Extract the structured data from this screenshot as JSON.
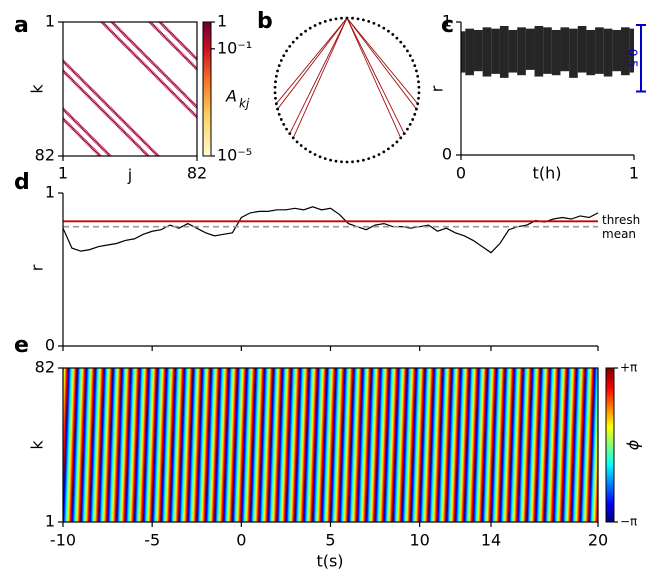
{
  "chart_data": [
    {
      "type": "matrix",
      "label": "a",
      "xlabel": "j",
      "ylabel": "k",
      "xlim": [
        1,
        82
      ],
      "ylim": [
        1,
        82
      ],
      "xticks": [
        1,
        82
      ],
      "yticks": [
        1,
        82
      ],
      "band_offsets": [
        23,
        24,
        29,
        30,
        52,
        53,
        58,
        59
      ],
      "color": "#a0003c",
      "clim": [
        1e-05,
        1
      ],
      "log": true,
      "colorbar_ticks": [
        1,
        {
          "value": 0.1,
          "label": "10⁻¹"
        },
        {
          "value": 1e-05,
          "label": "10⁻⁵"
        }
      ],
      "colorbar_label": "A",
      "colorbar_label_sub": "kj"
    },
    {
      "type": "network",
      "label": "b",
      "node_count": 82,
      "source": 0,
      "targets": [
        23,
        24,
        29,
        30,
        52,
        53,
        58,
        59
      ],
      "color": "#a01010"
    },
    {
      "type": "band",
      "label": "c",
      "xlabel": "t(h)",
      "ylabel": "r",
      "xlim": [
        0,
        1
      ],
      "ylim": [
        0,
        1
      ],
      "xticks": [
        0,
        1
      ],
      "yticks": [
        0,
        1
      ],
      "x": [
        0,
        0.05,
        0.1,
        0.15,
        0.2,
        0.25,
        0.3,
        0.35,
        0.4,
        0.45,
        0.5,
        0.55,
        0.6,
        0.65,
        0.7,
        0.75,
        0.8,
        0.85,
        0.9,
        0.95,
        1
      ],
      "upper": [
        0.93,
        0.95,
        0.94,
        0.96,
        0.95,
        0.97,
        0.94,
        0.96,
        0.95,
        0.97,
        0.96,
        0.94,
        0.96,
        0.95,
        0.97,
        0.94,
        0.96,
        0.95,
        0.94,
        0.96,
        0.95
      ],
      "lower": [
        0.62,
        0.6,
        0.63,
        0.59,
        0.61,
        0.58,
        0.62,
        0.6,
        0.64,
        0.59,
        0.61,
        0.6,
        0.63,
        0.58,
        0.62,
        0.6,
        0.61,
        0.59,
        0.63,
        0.6,
        0.62
      ],
      "color": "#000000",
      "scalebar": 0.5,
      "scalebar_color": "#0000cc"
    },
    {
      "type": "line",
      "label": "d",
      "ylabel": "r",
      "xlim": [
        -10,
        20
      ],
      "ylim": [
        0,
        1
      ],
      "yticks": [
        0,
        1
      ],
      "xticks": [
        -10,
        -5,
        0,
        5,
        10,
        14,
        20
      ],
      "x": [
        -10,
        -9.5,
        -9,
        -8.5,
        -8,
        -7.5,
        -7,
        -6.5,
        -6,
        -5.5,
        -5,
        -4.5,
        -4,
        -3.5,
        -3,
        -2.5,
        -2,
        -1.5,
        -1,
        -0.5,
        0,
        0.5,
        1,
        1.5,
        2,
        2.5,
        3,
        3.5,
        4,
        4.5,
        5,
        5.5,
        6,
        6.5,
        7,
        7.5,
        8,
        8.5,
        9,
        9.5,
        10,
        10.5,
        11,
        11.5,
        12,
        12.5,
        13,
        13.5,
        14,
        14.5,
        15,
        15.5,
        16,
        16.5,
        17,
        17.5,
        18,
        18.5,
        19,
        19.5,
        20
      ],
      "values": [
        0.77,
        0.64,
        0.62,
        0.63,
        0.65,
        0.66,
        0.67,
        0.69,
        0.7,
        0.73,
        0.75,
        0.76,
        0.79,
        0.77,
        0.8,
        0.77,
        0.74,
        0.72,
        0.73,
        0.74,
        0.84,
        0.87,
        0.88,
        0.88,
        0.89,
        0.89,
        0.9,
        0.89,
        0.91,
        0.89,
        0.9,
        0.86,
        0.8,
        0.78,
        0.76,
        0.79,
        0.8,
        0.78,
        0.78,
        0.77,
        0.78,
        0.79,
        0.75,
        0.77,
        0.74,
        0.72,
        0.69,
        0.65,
        0.61,
        0.67,
        0.76,
        0.78,
        0.79,
        0.82,
        0.81,
        0.83,
        0.84,
        0.83,
        0.85,
        0.84,
        0.87
      ],
      "color": "#000000",
      "thresh": 0.815,
      "mean": 0.78,
      "thresh_label": "thresh",
      "mean_label": "mean",
      "thresh_color": "#cc0000",
      "mean_color": "#999999"
    },
    {
      "type": "phase",
      "label": "e",
      "xlabel": "t(s)",
      "ylabel": "k",
      "xlim": [
        -10,
        20
      ],
      "ylim": [
        1,
        82
      ],
      "xticks": [
        -10,
        -5,
        0,
        5,
        10,
        14,
        20
      ],
      "yticks": [
        1,
        82
      ],
      "frequency_hz": 2,
      "clim": [
        -3.1416,
        3.1416
      ],
      "colorbar_ticks": [
        {
          "value": 3.1416,
          "label": "+π"
        },
        {
          "value": -3.1416,
          "label": "−π"
        }
      ],
      "colorbar_label": "ϕ"
    }
  ]
}
